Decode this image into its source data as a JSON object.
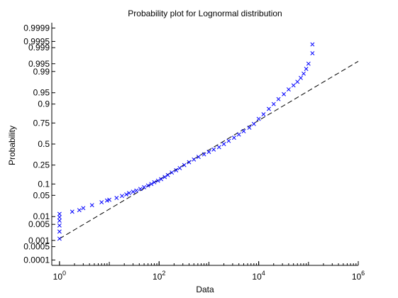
{
  "chart_data": {
    "type": "scatter",
    "title": "Probability plot for Lognormal distribution",
    "xlabel": "Data",
    "ylabel": "Probability",
    "x_scale": "log",
    "y_scale": "normal-probability",
    "xlim": [
      0.7,
      1000000
    ],
    "ylim": [
      5e-05,
      0.99995
    ],
    "grid": false,
    "marker_color": "#0000ff",
    "reference_line_color": "#000000",
    "x_ticks": [
      {
        "value": 1,
        "base": "10",
        "exp": "0"
      },
      {
        "value": 100,
        "base": "10",
        "exp": "2"
      },
      {
        "value": 10000,
        "base": "10",
        "exp": "4"
      },
      {
        "value": 1000000,
        "base": "10",
        "exp": "6"
      }
    ],
    "y_ticks": [
      {
        "value": 0.0001,
        "label": "0.0001"
      },
      {
        "value": 0.0005,
        "label": "0.0005"
      },
      {
        "value": 0.001,
        "label": "0.001"
      },
      {
        "value": 0.005,
        "label": "0.005"
      },
      {
        "value": 0.01,
        "label": "0.01"
      },
      {
        "value": 0.05,
        "label": "0.05"
      },
      {
        "value": 0.1,
        "label": "0.1"
      },
      {
        "value": 0.25,
        "label": "0.25"
      },
      {
        "value": 0.5,
        "label": "0.5"
      },
      {
        "value": 0.75,
        "label": "0.75"
      },
      {
        "value": 0.9,
        "label": "0.9"
      },
      {
        "value": 0.95,
        "label": "0.95"
      },
      {
        "value": 0.99,
        "label": "0.99"
      },
      {
        "value": 0.995,
        "label": "0.995"
      },
      {
        "value": 0.999,
        "label": "0.999"
      },
      {
        "value": 0.9995,
        "label": "0.9995"
      },
      {
        "value": 0.9999,
        "label": "0.9999"
      }
    ],
    "reference_line": [
      {
        "x": 1,
        "y": 0.0012
      },
      {
        "x": 1000000,
        "y": 0.996
      }
    ],
    "series": [
      {
        "marker": "x",
        "points": [
          {
            "x": 1,
            "y": 0.0012
          },
          {
            "x": 1,
            "y": 0.0025
          },
          {
            "x": 1,
            "y": 0.0045
          },
          {
            "x": 1,
            "y": 0.007
          },
          {
            "x": 1,
            "y": 0.0095
          },
          {
            "x": 1,
            "y": 0.0125
          },
          {
            "x": 1.8,
            "y": 0.015
          },
          {
            "x": 2.5,
            "y": 0.017
          },
          {
            "x": 3,
            "y": 0.02
          },
          {
            "x": 4.5,
            "y": 0.025
          },
          {
            "x": 7,
            "y": 0.031
          },
          {
            "x": 9,
            "y": 0.035
          },
          {
            "x": 10,
            "y": 0.037
          },
          {
            "x": 14,
            "y": 0.042
          },
          {
            "x": 18,
            "y": 0.048
          },
          {
            "x": 22,
            "y": 0.053
          },
          {
            "x": 25,
            "y": 0.058
          },
          {
            "x": 30,
            "y": 0.063
          },
          {
            "x": 35,
            "y": 0.068
          },
          {
            "x": 42,
            "y": 0.075
          },
          {
            "x": 50,
            "y": 0.083
          },
          {
            "x": 60,
            "y": 0.092
          },
          {
            "x": 70,
            "y": 0.1
          },
          {
            "x": 80,
            "y": 0.11
          },
          {
            "x": 95,
            "y": 0.12
          },
          {
            "x": 110,
            "y": 0.13
          },
          {
            "x": 130,
            "y": 0.145
          },
          {
            "x": 150,
            "y": 0.16
          },
          {
            "x": 180,
            "y": 0.18
          },
          {
            "x": 220,
            "y": 0.2
          },
          {
            "x": 260,
            "y": 0.22
          },
          {
            "x": 320,
            "y": 0.25
          },
          {
            "x": 400,
            "y": 0.28
          },
          {
            "x": 500,
            "y": 0.31
          },
          {
            "x": 620,
            "y": 0.34
          },
          {
            "x": 800,
            "y": 0.37
          },
          {
            "x": 1000,
            "y": 0.4
          },
          {
            "x": 1250,
            "y": 0.43
          },
          {
            "x": 1600,
            "y": 0.46
          },
          {
            "x": 2000,
            "y": 0.5
          },
          {
            "x": 2500,
            "y": 0.54
          },
          {
            "x": 3200,
            "y": 0.58
          },
          {
            "x": 4000,
            "y": 0.62
          },
          {
            "x": 5000,
            "y": 0.66
          },
          {
            "x": 6500,
            "y": 0.7
          },
          {
            "x": 8000,
            "y": 0.74
          },
          {
            "x": 10000,
            "y": 0.79
          },
          {
            "x": 12500,
            "y": 0.83
          },
          {
            "x": 16000,
            "y": 0.87
          },
          {
            "x": 20000,
            "y": 0.9
          },
          {
            "x": 25000,
            "y": 0.925
          },
          {
            "x": 32000,
            "y": 0.945
          },
          {
            "x": 40000,
            "y": 0.96
          },
          {
            "x": 50000,
            "y": 0.97
          },
          {
            "x": 60000,
            "y": 0.977
          },
          {
            "x": 70000,
            "y": 0.983
          },
          {
            "x": 80000,
            "y": 0.988
          },
          {
            "x": 90000,
            "y": 0.992
          },
          {
            "x": 100000,
            "y": 0.995
          },
          {
            "x": 120000,
            "y": 0.9982
          },
          {
            "x": 120000,
            "y": 0.9993
          }
        ]
      }
    ]
  }
}
